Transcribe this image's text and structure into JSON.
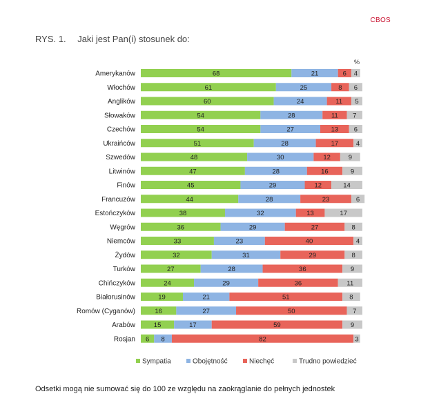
{
  "header": {
    "brand": "CBOS",
    "figure_label": "RYS. 1.",
    "title": "Jaki jest Pan(i) stosunek do:"
  },
  "footnote": "Odsetki mogą nie sumować się do 100 ze względu na zaokrąglanie do pełnych jednostek",
  "chart_data": {
    "type": "bar",
    "orientation": "horizontal",
    "stacked": true,
    "unit_label": "%",
    "xlim": [
      0,
      100
    ],
    "grid": false,
    "legend_position": "bottom",
    "categories": [
      "Amerykanów",
      "Włochów",
      "Anglików",
      "Słowaków",
      "Czechów",
      "Ukraińców",
      "Szwedów",
      "Litwinów",
      "Finów",
      "Francuzów",
      "Estończyków",
      "Węgrów",
      "Niemców",
      "Żydów",
      "Turków",
      "Chińczyków",
      "Białorusinów",
      "Romów (Cyganów)",
      "Arabów",
      "Rosjan"
    ],
    "series": [
      {
        "name": "Sympatia",
        "color": "#92d050",
        "values": [
          68,
          61,
          60,
          54,
          54,
          51,
          48,
          47,
          45,
          44,
          38,
          36,
          33,
          32,
          27,
          24,
          19,
          16,
          15,
          6
        ]
      },
      {
        "name": "Obojętność",
        "color": "#8eb4e3",
        "values": [
          21,
          25,
          24,
          28,
          27,
          28,
          30,
          28,
          29,
          28,
          32,
          29,
          23,
          31,
          28,
          29,
          21,
          27,
          17,
          8
        ]
      },
      {
        "name": "Niechęć",
        "color": "#e8645a",
        "values": [
          6,
          8,
          11,
          11,
          13,
          17,
          12,
          16,
          12,
          23,
          13,
          27,
          40,
          29,
          36,
          36,
          51,
          50,
          59,
          82
        ]
      },
      {
        "name": "Trudno powiedzieć",
        "color": "#c8c8c8",
        "values": [
          4,
          6,
          5,
          7,
          6,
          4,
          9,
          9,
          14,
          6,
          17,
          8,
          4,
          8,
          9,
          11,
          8,
          7,
          9,
          3
        ]
      }
    ]
  }
}
